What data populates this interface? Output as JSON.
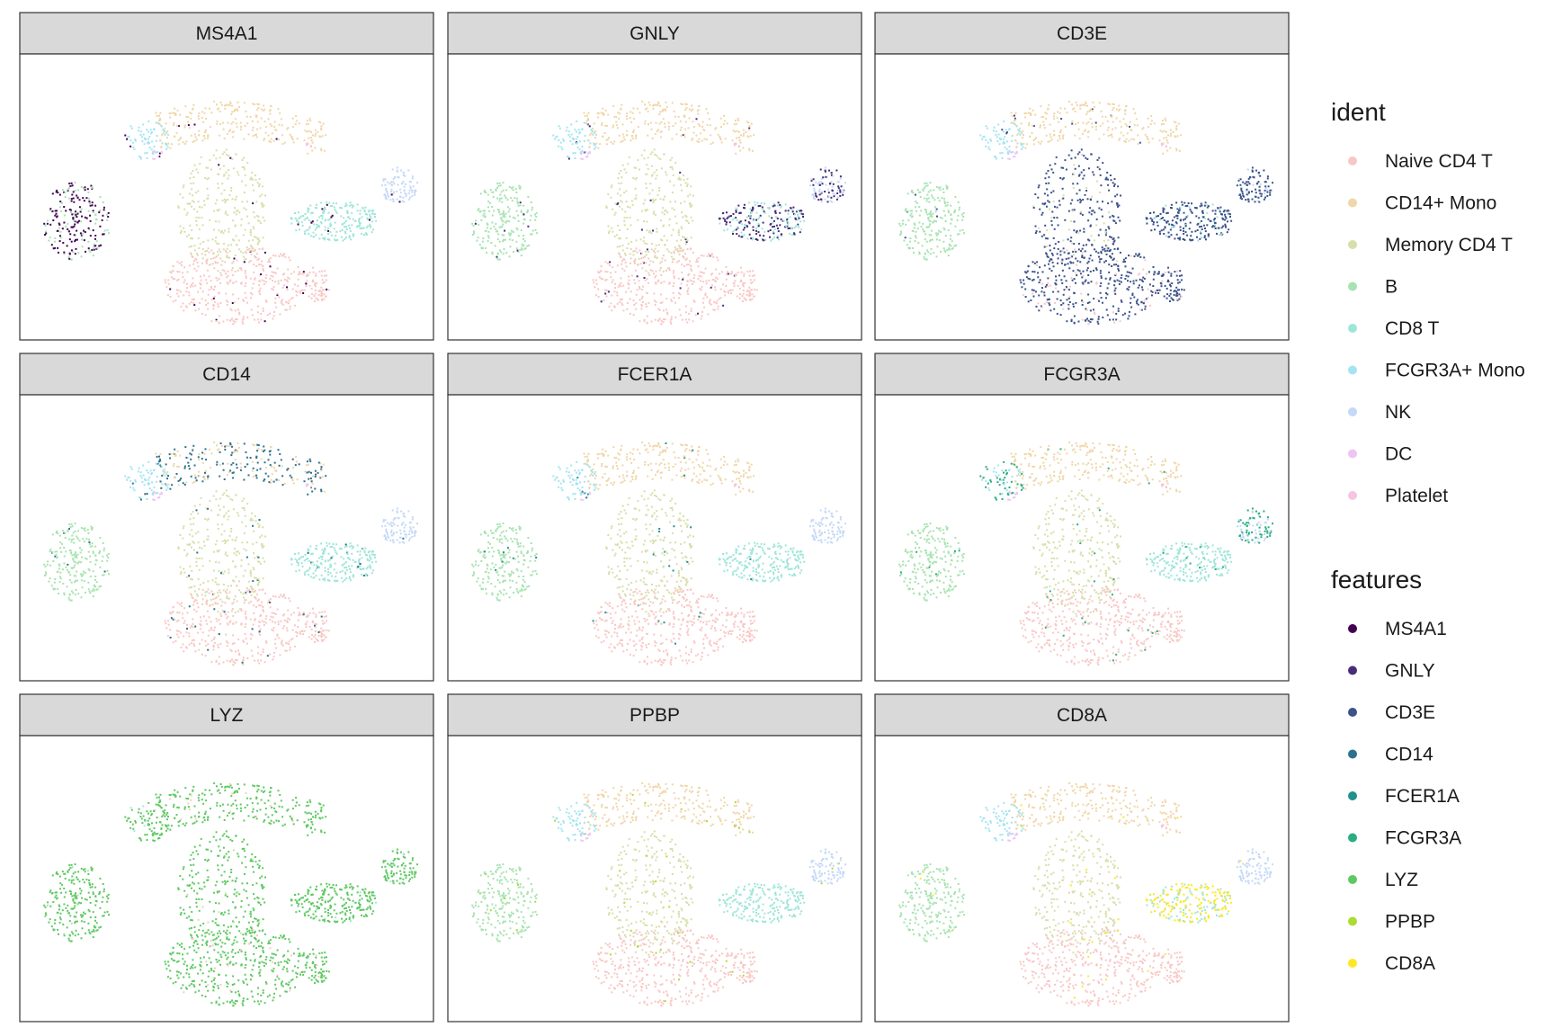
{
  "chart_data": {
    "type": "scatter",
    "title": "",
    "xlabel": "",
    "ylabel": "",
    "grid": false,
    "legend_position": "right",
    "panels": [
      {
        "name": "MS4A1",
        "feature": "MS4A1",
        "high_idents": [
          "B"
        ]
      },
      {
        "name": "GNLY",
        "feature": "GNLY",
        "high_idents": [
          "NK",
          "CD8 T"
        ]
      },
      {
        "name": "CD3E",
        "feature": "CD3E",
        "high_idents": [
          "Naive CD4 T",
          "Memory CD4 T",
          "CD8 T",
          "NK"
        ]
      },
      {
        "name": "CD14",
        "feature": "CD14",
        "high_idents": [
          "CD14+ Mono"
        ]
      },
      {
        "name": "FCER1A",
        "feature": "FCER1A",
        "high_idents": [
          "DC"
        ]
      },
      {
        "name": "FCGR3A",
        "feature": "FCGR3A",
        "high_idents": [
          "FCGR3A+ Mono",
          "NK"
        ]
      },
      {
        "name": "LYZ",
        "feature": "LYZ",
        "high_idents": [
          "Naive CD4 T",
          "CD14+ Mono",
          "Memory CD4 T",
          "B",
          "CD8 T",
          "FCGR3A+ Mono",
          "NK",
          "DC",
          "Platelet"
        ]
      },
      {
        "name": "PPBP",
        "feature": "PPBP",
        "high_idents": [
          "Platelet"
        ]
      },
      {
        "name": "CD8A",
        "feature": "CD8A",
        "high_idents": [
          "CD8 T"
        ]
      }
    ],
    "legends": {
      "ident": {
        "title": "ident",
        "items": [
          {
            "label": "Naive CD4 T",
            "color": "#f8c7c4"
          },
          {
            "label": "CD14+ Mono",
            "color": "#f0d6a8"
          },
          {
            "label": "Memory CD4 T",
            "color": "#d8deaa"
          },
          {
            "label": "B",
            "color": "#a7e3b0"
          },
          {
            "label": "CD8 T",
            "color": "#9fe6d8"
          },
          {
            "label": "FCGR3A+ Mono",
            "color": "#a4e4f2"
          },
          {
            "label": "NK",
            "color": "#c4d8f7"
          },
          {
            "label": "DC",
            "color": "#efc4f4"
          },
          {
            "label": "Platelet",
            "color": "#f8c4e0"
          }
        ]
      },
      "features": {
        "title": "features",
        "items": [
          {
            "label": "MS4A1",
            "color": "#440154"
          },
          {
            "label": "GNLY",
            "color": "#472d7b"
          },
          {
            "label": "CD3E",
            "color": "#3b528b"
          },
          {
            "label": "CD14",
            "color": "#2c728e"
          },
          {
            "label": "FCER1A",
            "color": "#21918c"
          },
          {
            "label": "FCGR3A",
            "color": "#28ae80"
          },
          {
            "label": "LYZ",
            "color": "#5ec962"
          },
          {
            "label": "PPBP",
            "color": "#addc30"
          },
          {
            "label": "CD8A",
            "color": "#fde725"
          }
        ]
      }
    }
  }
}
